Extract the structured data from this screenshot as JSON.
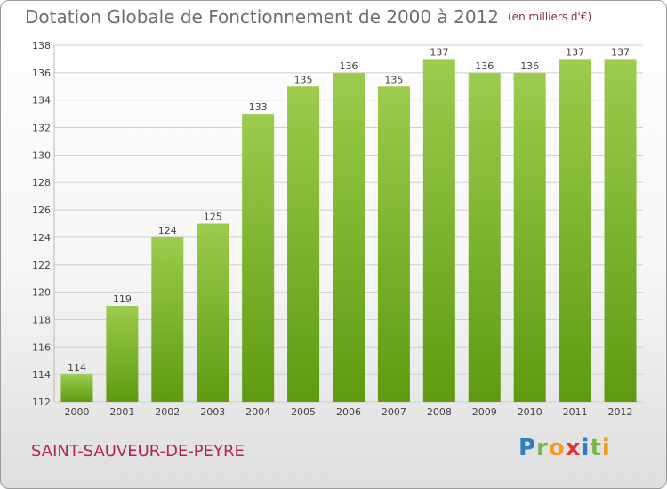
{
  "header": {
    "title": "Dotation Globale de Fonctionnement de 2000 à 2012",
    "unit": "(en milliers d'€)"
  },
  "footer": {
    "city": "SAINT-SAUVEUR-DE-PEYRE",
    "logo": [
      "P",
      "r",
      "o",
      "x",
      "i",
      "t",
      "i"
    ]
  },
  "colors": {
    "bar_top": "#9ccc4e",
    "bar_bottom": "#5e9a10",
    "grid": "#cfcfcf",
    "axis_text": "#444444",
    "city": "#b4264d"
  },
  "chart_data": {
    "type": "bar",
    "categories": [
      "2000",
      "2001",
      "2002",
      "2003",
      "2004",
      "2005",
      "2006",
      "2007",
      "2008",
      "2009",
      "2010",
      "2011",
      "2012"
    ],
    "values": [
      114,
      119,
      124,
      125,
      133,
      135,
      136,
      135,
      137,
      136,
      136,
      137,
      137
    ],
    "title": "Dotation Globale de Fonctionnement de 2000 à 2012",
    "xlabel": "",
    "ylabel": "",
    "ylim": [
      112,
      138
    ],
    "yticks": [
      112,
      114,
      116,
      118,
      120,
      122,
      124,
      126,
      128,
      130,
      132,
      134,
      136,
      138
    ],
    "grid": true,
    "data_labels": true
  }
}
